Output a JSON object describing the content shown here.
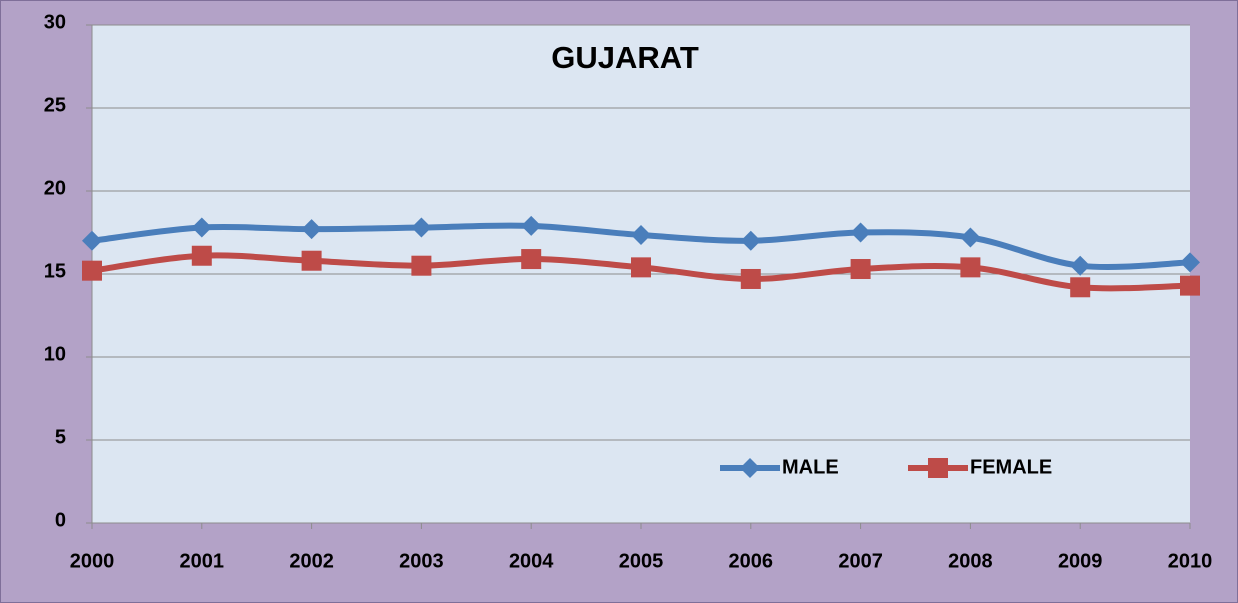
{
  "chart_data": {
    "type": "line",
    "title": "GUJARAT",
    "x": [
      2000,
      2001,
      2002,
      2003,
      2004,
      2005,
      2006,
      2007,
      2008,
      2009,
      2010
    ],
    "xlim": [
      2000,
      2010
    ],
    "xticks": [
      2000,
      2001,
      2002,
      2003,
      2004,
      2005,
      2006,
      2007,
      2008,
      2009,
      2010
    ],
    "ylim": [
      0,
      30
    ],
    "yticks": [
      0,
      5,
      10,
      15,
      20,
      25,
      30
    ],
    "grid": true,
    "legend": "bottom-right",
    "series": [
      {
        "name": "MALE",
        "color": "#4a7ebb",
        "marker": "diamond",
        "values": [
          17.0,
          17.8,
          17.7,
          17.8,
          17.9,
          17.35,
          17.0,
          17.5,
          17.2,
          15.5,
          15.7
        ]
      },
      {
        "name": "FEMALE",
        "color": "#be4b48",
        "marker": "square",
        "values": [
          15.2,
          16.1,
          15.8,
          15.5,
          15.9,
          15.4,
          14.7,
          15.3,
          15.4,
          14.2,
          14.3
        ]
      }
    ]
  }
}
